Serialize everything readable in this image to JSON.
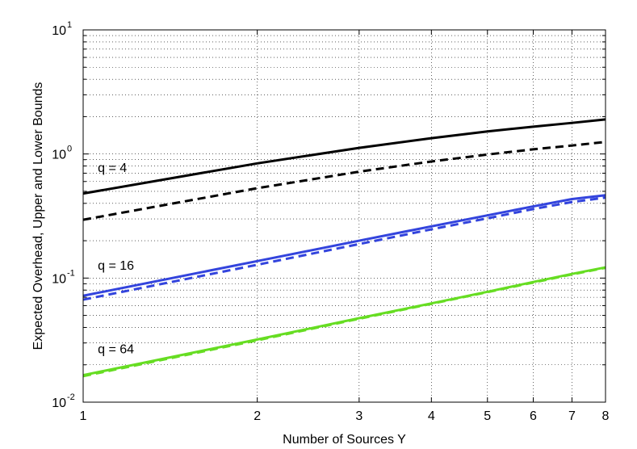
{
  "chart_data": {
    "type": "line",
    "title": "",
    "xlabel": "Number of Sources Y",
    "ylabel": "Expected Overhead, Upper and Lower Bounds",
    "x_scale": "log",
    "y_scale": "log",
    "xlim": [
      1,
      8
    ],
    "ylim": [
      0.01,
      10
    ],
    "grid": true,
    "x_ticks": [
      1,
      2,
      3,
      4,
      5,
      6,
      7,
      8
    ],
    "x_tick_labels": [
      "1",
      "2",
      "3",
      "4",
      "5",
      "6",
      "7",
      "8"
    ],
    "y_ticks": [
      0.01,
      0.1,
      1,
      10
    ],
    "y_tick_labels": [
      {
        "base": "10",
        "exp": "-2"
      },
      {
        "base": "10",
        "exp": "-1"
      },
      {
        "base": "10",
        "exp": "0"
      },
      {
        "base": "10",
        "exp": "1"
      }
    ],
    "x": [
      1,
      2,
      3,
      4,
      5,
      6,
      7,
      8
    ],
    "series": [
      {
        "color": "#000000",
        "style": "solid",
        "values": [
          0.48,
          0.84,
          1.12,
          1.34,
          1.52,
          1.66,
          1.78,
          1.9
        ]
      },
      {
        "color": "#000000",
        "style": "dashed",
        "values": [
          0.295,
          0.53,
          0.72,
          0.87,
          0.99,
          1.09,
          1.17,
          1.25
        ]
      },
      {
        "color": "#3344dd",
        "style": "solid",
        "values": [
          0.072,
          0.137,
          0.2,
          0.261,
          0.32,
          0.378,
          0.433,
          0.465
        ]
      },
      {
        "color": "#3344dd",
        "style": "dashed",
        "values": [
          0.067,
          0.128,
          0.188,
          0.247,
          0.303,
          0.36,
          0.41,
          0.445
        ]
      },
      {
        "color": "#66dd22",
        "style": "solid",
        "values": [
          0.0165,
          0.032,
          0.0475,
          0.0625,
          0.0775,
          0.093,
          0.108,
          0.122
        ]
      },
      {
        "color": "#66dd22",
        "style": "dashed",
        "values": [
          0.0162,
          0.0315,
          0.047,
          0.062,
          0.077,
          0.092,
          0.107,
          0.121
        ]
      }
    ],
    "annotations": [
      {
        "text": "q = 4",
        "x": 1.06,
        "y": 0.78
      },
      {
        "text": "q = 16",
        "x": 1.06,
        "y": 0.128
      },
      {
        "text": "q = 64",
        "x": 1.06,
        "y": 0.027
      }
    ]
  }
}
